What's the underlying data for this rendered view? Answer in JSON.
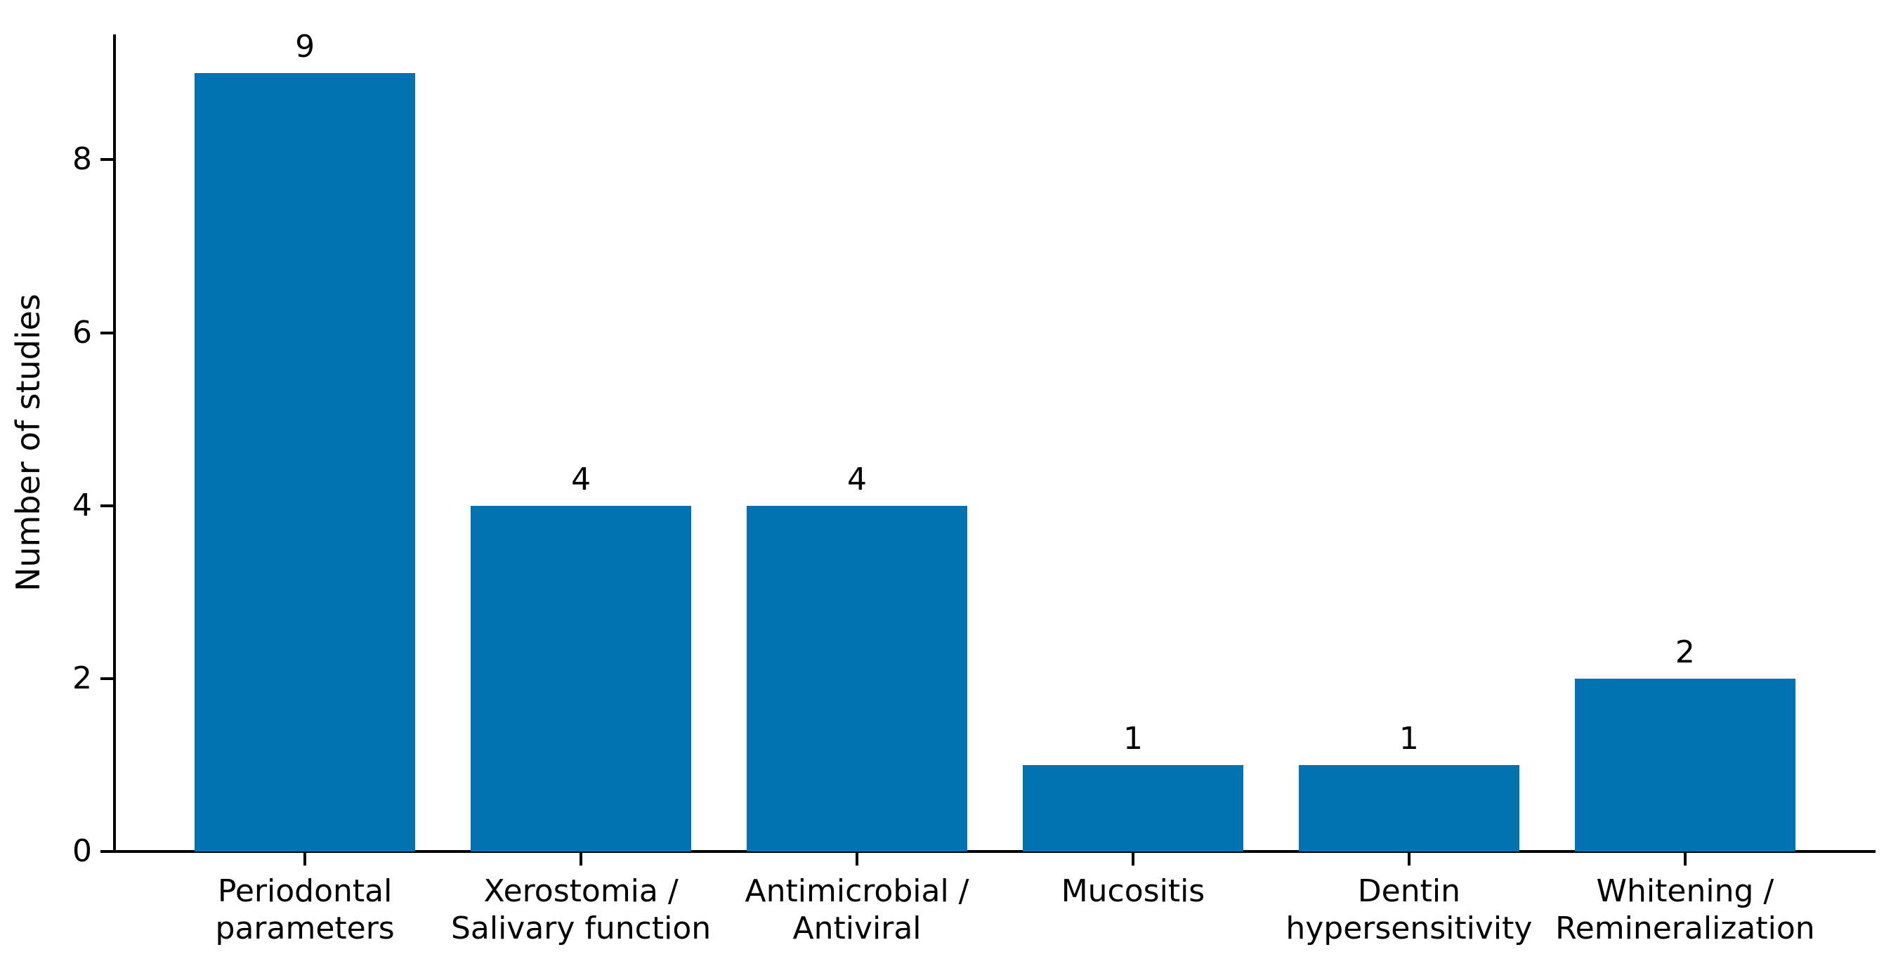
{
  "figure": {
    "background_color": "#ffffff",
    "axis_color": "#000000",
    "text_color": "#000000"
  },
  "chart_data": {
    "type": "bar",
    "title": "",
    "xlabel": "",
    "ylabel": "Number of studies",
    "categories": [
      "Periodontal\nparameters",
      "Xerostomia /\nSalivary function",
      "Antimicrobial /\nAntiviral",
      "Mucositis",
      "Dentin\nhypersensitivity",
      "Whitening /\nRemineralization"
    ],
    "values": [
      9,
      4,
      4,
      1,
      1,
      2
    ],
    "bar_value_labels": [
      "9",
      "4",
      "4",
      "1",
      "1",
      "2"
    ],
    "yticks": [
      0,
      2,
      4,
      6,
      8
    ],
    "ytick_labels": [
      "0",
      "2",
      "4",
      "6",
      "8"
    ],
    "ylim": [
      0,
      9.45
    ],
    "bar_color": "#0173b2",
    "grid": false,
    "legend": null,
    "legend_position": "none"
  }
}
